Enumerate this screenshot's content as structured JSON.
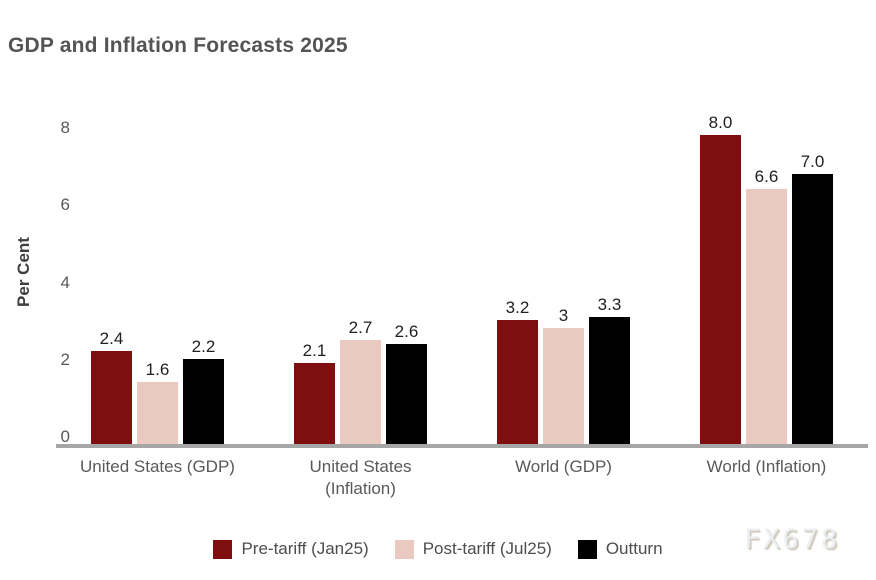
{
  "title": "GDP and Inflation Forecasts 2025",
  "watermark": "FX678",
  "chart_data": {
    "type": "bar",
    "title": "GDP and Inflation Forecasts 2025",
    "xlabel": "",
    "ylabel": "Per Cent",
    "ylim": [
      0,
      8.9
    ],
    "yticks": [
      0,
      2,
      4,
      6,
      8
    ],
    "grid": false,
    "legend_position": "bottom",
    "categories": [
      "United States (GDP)",
      "United States (Inflation)",
      "World (GDP)",
      "World (Inflation)"
    ],
    "categories_display": [
      "United States (GDP)",
      "United States\n(Inflation)",
      "World (GDP)",
      "World (Inflation)"
    ],
    "series": [
      {
        "name": "Pre-tariff (Jan25)",
        "color": "#7e0e10",
        "values": [
          2.4,
          2.1,
          3.2,
          8.0
        ],
        "labels": [
          "2.4",
          "2.1",
          "3.2",
          "8.0"
        ]
      },
      {
        "name": "Post-tariff (Jul25)",
        "color": "#eac9c1",
        "values": [
          1.6,
          2.7,
          3.0,
          6.6
        ],
        "labels": [
          "1.6",
          "2.7",
          "3",
          "6.6"
        ]
      },
      {
        "name": "Outturn",
        "color": "#000000",
        "values": [
          2.2,
          2.6,
          3.3,
          7.0
        ],
        "labels": [
          "2.2",
          "2.6",
          "3.3",
          "7.0"
        ]
      }
    ],
    "colors": {
      "axis_line": "#a6a6a6",
      "tick_text": "#595959",
      "value_label_text": "#1f1f1f",
      "title_text": "#545454"
    }
  }
}
